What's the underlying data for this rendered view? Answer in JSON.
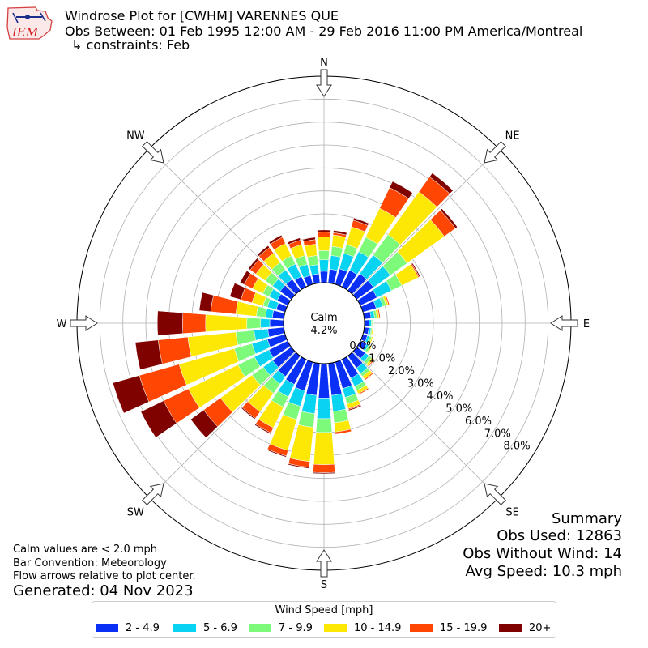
{
  "header": {
    "title_line1": "Windrose Plot for [CWHM] VARENNES  QUE",
    "title_line2": "Obs Between: 01 Feb 1995 12:00 AM - 29 Feb 2016 11:00 PM America/Montreal",
    "title_line3": "↳ constraints: Feb",
    "logo_text": "IEM"
  },
  "summary": {
    "title": "Summary",
    "obs_used": "Obs Used: 12863",
    "obs_without_wind": "Obs Without Wind: 14",
    "avg_speed": "Avg Speed: 10.3 mph"
  },
  "notes": {
    "calm_note": "Calm values are < 2.0 mph",
    "bar_convention": "Bar Convention: Meteorology",
    "flow_arrows": "Flow arrows relative to plot center.",
    "generated": "Generated: 04 Nov 2023"
  },
  "colors": {
    "bins": [
      "#0a30f5",
      "#08d3f0",
      "#7dfa7a",
      "#fde704",
      "#ff4603",
      "#7f0100"
    ],
    "grid": "#b0b0b0"
  },
  "chart_data": {
    "type": "windrose",
    "center_label": "Calm",
    "center_value": "4.2%",
    "directions": [
      "N",
      "NE",
      "E",
      "SE",
      "S",
      "SW",
      "W",
      "NW"
    ],
    "radial_ticks": [
      "0.0%",
      "1.0%",
      "2.0%",
      "3.0%",
      "4.0%",
      "5.0%",
      "6.0%",
      "7.0%",
      "8.0%"
    ],
    "radial_max": 9,
    "legend_title": "Wind Speed [mph]",
    "bins": [
      "2 - 4.9",
      "5 - 6.9",
      "7 - 9.9",
      "10 - 14.9",
      "15 - 19.9",
      "20+"
    ],
    "sector_degrees": [
      0,
      10,
      20,
      30,
      40,
      50,
      60,
      70,
      80,
      90,
      100,
      110,
      120,
      130,
      140,
      150,
      160,
      170,
      180,
      190,
      200,
      210,
      220,
      230,
      240,
      250,
      260,
      270,
      280,
      290,
      300,
      310,
      320,
      330,
      340,
      350
    ],
    "cumulative_pct": [
      [
        0.5,
        1.0,
        1.4,
        2.0,
        2.2,
        2.3
      ],
      [
        0.6,
        1.2,
        1.6,
        2.1,
        2.2,
        2.3
      ],
      [
        0.7,
        1.4,
        1.8,
        2.6,
        2.9,
        3.0
      ],
      [
        0.8,
        1.7,
        2.4,
        3.8,
        4.8,
        5.1
      ],
      [
        0.9,
        1.9,
        3.0,
        5.3,
        6.1,
        6.3
      ],
      [
        0.9,
        1.8,
        2.7,
        4.7,
        5.3,
        5.4
      ],
      [
        0.8,
        1.5,
        2.0,
        2.8,
        2.85,
        2.9
      ],
      [
        0.6,
        0.9,
        1.05,
        1.15,
        1.2,
        1.2
      ],
      [
        0.3,
        0.45,
        0.55,
        0.65,
        0.7,
        0.7
      ],
      [
        0.2,
        0.3,
        0.35,
        0.4,
        0.4,
        0.4
      ],
      [
        0.2,
        0.3,
        0.35,
        0.4,
        0.4,
        0.4
      ],
      [
        0.2,
        0.3,
        0.4,
        0.45,
        0.45,
        0.45
      ],
      [
        0.3,
        0.4,
        0.5,
        0.55,
        0.55,
        0.55
      ],
      [
        0.45,
        0.65,
        0.8,
        0.9,
        0.95,
        0.95
      ],
      [
        0.65,
        0.95,
        1.1,
        1.25,
        1.3,
        1.3
      ],
      [
        0.9,
        1.3,
        1.5,
        1.65,
        1.7,
        1.7
      ],
      [
        1.2,
        1.6,
        1.9,
        2.1,
        2.15,
        2.2
      ],
      [
        1.4,
        2.1,
        2.6,
        3.0,
        3.1,
        3.1
      ],
      [
        1.5,
        2.4,
        3.0,
        4.4,
        4.75,
        4.8
      ],
      [
        1.4,
        2.2,
        2.8,
        4.3,
        4.55,
        4.6
      ],
      [
        1.3,
        2.0,
        2.6,
        4.0,
        4.25,
        4.3
      ],
      [
        1.2,
        1.8,
        2.3,
        3.3,
        3.55,
        3.6
      ],
      [
        1.1,
        1.5,
        2.0,
        3.0,
        3.35,
        3.4
      ],
      [
        1.0,
        1.5,
        2.1,
        3.8,
        4.7,
        5.4
      ],
      [
        0.9,
        1.6,
        2.4,
        4.8,
        6.0,
        7.1
      ],
      [
        0.8,
        1.5,
        2.3,
        4.8,
        6.6,
        7.8
      ],
      [
        0.7,
        1.3,
        2.1,
        4.2,
        5.5,
        6.5
      ],
      [
        0.6,
        1.0,
        1.6,
        3.4,
        4.4,
        5.5
      ],
      [
        0.5,
        0.8,
        1.2,
        2.1,
        3.2,
        3.7
      ],
      [
        0.4,
        0.8,
        1.0,
        1.5,
        2.0,
        2.5
      ],
      [
        0.5,
        0.9,
        1.2,
        1.7,
        2.1,
        2.3
      ],
      [
        0.6,
        1.0,
        1.4,
        1.9,
        2.2,
        2.3
      ],
      [
        0.6,
        1.1,
        1.5,
        2.0,
        2.3,
        2.4
      ],
      [
        0.5,
        1.1,
        1.5,
        2.1,
        2.4,
        2.5
      ],
      [
        0.4,
        0.9,
        1.3,
        1.8,
        2.0,
        2.1
      ],
      [
        0.4,
        0.8,
        1.2,
        1.7,
        1.9,
        2.0
      ]
    ]
  }
}
